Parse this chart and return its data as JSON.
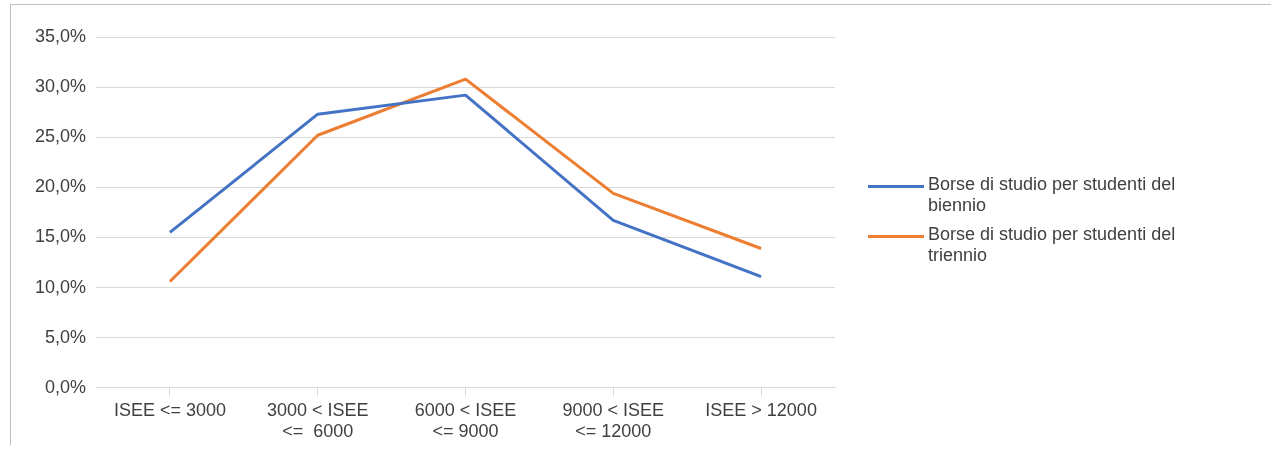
{
  "chart_data": {
    "type": "line",
    "categories": [
      "ISEE <= 3000",
      "3000 < ISEE <=  6000",
      "6000 < ISEE <= 9000",
      "9000 < ISEE <= 12000",
      "ISEE > 12000"
    ],
    "series": [
      {
        "name": "Borse di studio per studenti del biennio",
        "color": "#4472c4",
        "values": [
          15.5,
          27.3,
          29.2,
          16.7,
          11.1
        ]
      },
      {
        "name": "Borse di studio per studenti del triennio",
        "color": "#ed7d31",
        "values": [
          10.6,
          25.2,
          30.8,
          19.4,
          13.9
        ]
      }
    ],
    "ylim": [
      0,
      35
    ],
    "yticks": [
      {
        "value": 0,
        "label": "0,0%"
      },
      {
        "value": 5,
        "label": "5,0%"
      },
      {
        "value": 10,
        "label": "10,0%"
      },
      {
        "value": 15,
        "label": "15,0%"
      },
      {
        "value": 20,
        "label": "20,0%"
      },
      {
        "value": 25,
        "label": "25,0%"
      },
      {
        "value": 30,
        "label": "30,0%"
      },
      {
        "value": 35,
        "label": "35,0%"
      }
    ],
    "grid": "y",
    "legend": "right",
    "marker": "none",
    "line_style": "solid"
  }
}
